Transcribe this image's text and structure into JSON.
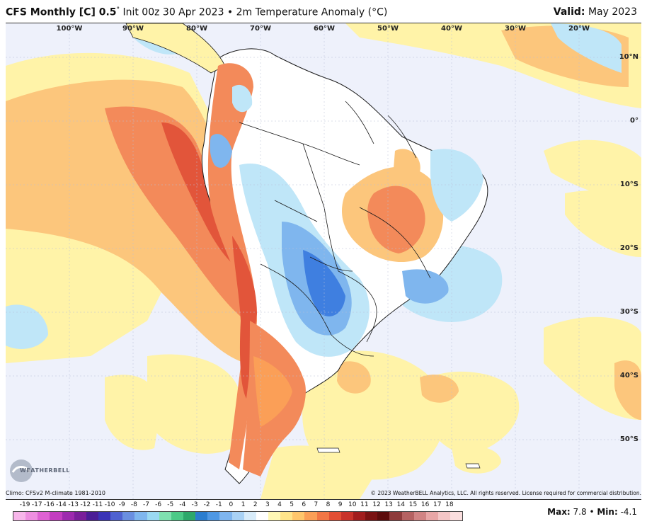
{
  "header": {
    "title_bold": "CFS Monthly [C] 0.5",
    "title_degree": "°",
    "title_rest": " Init 00z 30 Apr 2023 • 2m Temperature Anomaly (°C)",
    "valid_label": "Valid:",
    "valid_value": " May 2023"
  },
  "map": {
    "lon_labels": [
      "100°W",
      "90°W",
      "80°W",
      "70°W",
      "60°W",
      "50°W",
      "40°W",
      "30°W",
      "20°W"
    ],
    "lat_labels": [
      "10°N",
      "0°",
      "10°S",
      "20°S",
      "30°S",
      "40°S",
      "50°S"
    ]
  },
  "footer": {
    "climo": "Climo: CFSv2 M-climate 1981-2010",
    "copyright": "© 2023 WeatherBELL Analytics, LLC. All rights reserved. License required for commercial distribution.",
    "logo_text": "WEATHERBELL"
  },
  "colorbar": {
    "labels": [
      "-19",
      "-17",
      "-16",
      "-14",
      "-13",
      "-12",
      "-11",
      "-10",
      "-9",
      "-8",
      "-7",
      "-6",
      "-5",
      "-4",
      "-3",
      "-2",
      "-1",
      "0",
      "1",
      "2",
      "3",
      "4",
      "5",
      "6",
      "7",
      "8",
      "9",
      "10",
      "11",
      "12",
      "13",
      "14",
      "15",
      "16",
      "17",
      "18"
    ],
    "colors": [
      "#f7b6ea",
      "#ee8fe0",
      "#de62d3",
      "#c33dc0",
      "#9d2aae",
      "#7a1f9a",
      "#4b1e96",
      "#3a34b6",
      "#4f62d0",
      "#6a8fe0",
      "#7fb6ee",
      "#9ad9f2",
      "#7fe0b0",
      "#4cc987",
      "#2ea86b",
      "#2b7dcf",
      "#4f98e4",
      "#7fb5ee",
      "#a9d2f5",
      "#d8ecfa",
      "#ffffff",
      "#fff8b5",
      "#ffe48a",
      "#ffc66c",
      "#fb9f57",
      "#f27645",
      "#e24f35",
      "#c8332a",
      "#a11d1d",
      "#7a1212",
      "#5c0c0c",
      "#8e3b3b",
      "#b56262",
      "#d18484",
      "#e8a6a6",
      "#f4c6c6",
      "#fadede"
    ]
  },
  "stats": {
    "max_label": "Max:",
    "max_value": " 7.8",
    "sep": " • ",
    "min_label": "Min:",
    "min_value": " -4.1"
  },
  "colors": {
    "ocean_bg": "#eef1fb",
    "warm_light": "#fff3a8",
    "warm_mid": "#fcc67c",
    "warm_strong": "#f38a5a",
    "warm_max": "#e2553a",
    "cool_light": "#bfe6f8",
    "cool_mid": "#7fb6ee",
    "cool_strong": "#3f7fe0",
    "border": "#1a1a1a"
  }
}
